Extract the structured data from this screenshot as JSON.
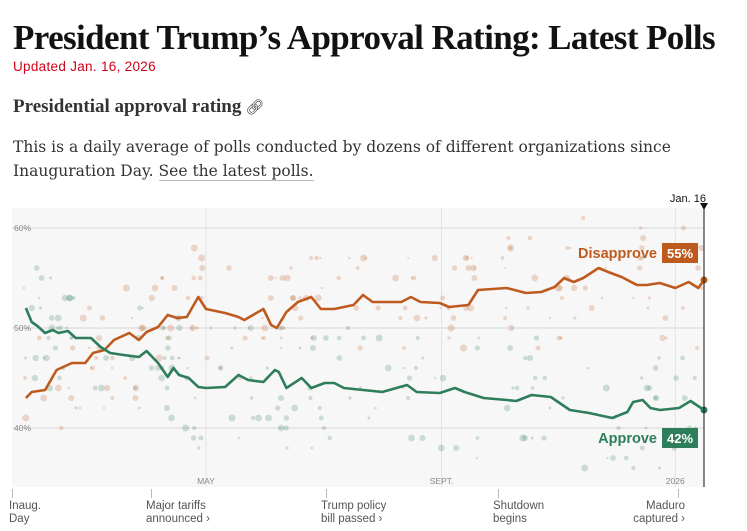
{
  "header": {
    "title": "President Trump’s Approval Rating: Latest Polls",
    "updated": "Updated Jan. 16, 2026",
    "section_title": "Presidential approval rating",
    "section_icon": "link-icon",
    "description": "This is a daily average of polls conducted by dozens of different organizations since Inauguration Day.",
    "description_link": "See the latest polls."
  },
  "chart_data": {
    "type": "line",
    "ylim": [
      34,
      62
    ],
    "xlim": [
      "2025-01-20",
      "2026-01-16"
    ],
    "yticks": [
      {
        "value": 60,
        "label": "60%"
      },
      {
        "value": 50,
        "label": "50%"
      },
      {
        "value": 40,
        "label": "40%"
      }
    ],
    "xticks": [
      {
        "date": "2025-05-01",
        "label": "MAY"
      },
      {
        "date": "2025-09-01",
        "label": "SEPT."
      },
      {
        "date": "2026-01-01",
        "label": "2026"
      }
    ],
    "grid": true,
    "current_marker": {
      "date": "2026-01-16",
      "label": "Jan. 16"
    },
    "series": [
      {
        "name": "Disapprove",
        "color": "#bf5a1f",
        "end_label": "55%",
        "points": [
          [
            "2025-01-27",
            43.0
          ],
          [
            "2025-01-30",
            43.6
          ],
          [
            "2025-02-06",
            43.8
          ],
          [
            "2025-02-12",
            45.8
          ],
          [
            "2025-02-20",
            46.5
          ],
          [
            "2025-02-27",
            46.5
          ],
          [
            "2025-03-03",
            47.5
          ],
          [
            "2025-03-09",
            47.8
          ],
          [
            "2025-03-14",
            48.8
          ],
          [
            "2025-03-22",
            49.5
          ],
          [
            "2025-03-27",
            48.8
          ],
          [
            "2025-03-31",
            49.6
          ],
          [
            "2025-04-06",
            50.1
          ],
          [
            "2025-04-11",
            51.3
          ],
          [
            "2025-04-16",
            51.0
          ],
          [
            "2025-04-21",
            51.1
          ],
          [
            "2025-04-27",
            53.1
          ],
          [
            "2025-05-01",
            51.9
          ],
          [
            "2025-05-11",
            51.5
          ],
          [
            "2025-05-18",
            51.1
          ],
          [
            "2025-05-21",
            50.8
          ],
          [
            "2025-05-31",
            51.9
          ],
          [
            "2025-06-04",
            50.3
          ],
          [
            "2025-06-07",
            50.0
          ],
          [
            "2025-06-12",
            51.6
          ],
          [
            "2025-06-18",
            52.6
          ],
          [
            "2025-06-25",
            53.1
          ],
          [
            "2025-06-30",
            51.9
          ],
          [
            "2025-07-07",
            51.9
          ],
          [
            "2025-07-17",
            52.3
          ],
          [
            "2025-07-22",
            53.3
          ],
          [
            "2025-07-27",
            52.6
          ],
          [
            "2025-08-11",
            52.6
          ],
          [
            "2025-08-16",
            53.1
          ],
          [
            "2025-08-21",
            52.6
          ],
          [
            "2025-08-31",
            52.5
          ],
          [
            "2025-09-05",
            52.1
          ],
          [
            "2025-09-15",
            52.3
          ],
          [
            "2025-09-20",
            53.8
          ],
          [
            "2025-10-05",
            54.0
          ],
          [
            "2025-10-15",
            53.5
          ],
          [
            "2025-10-23",
            53.6
          ],
          [
            "2025-10-30",
            54.1
          ],
          [
            "2025-11-04",
            55.0
          ],
          [
            "2025-11-09",
            54.6
          ],
          [
            "2025-11-14",
            55.0
          ],
          [
            "2025-11-22",
            56.0
          ],
          [
            "2025-11-27",
            55.6
          ],
          [
            "2025-12-04",
            55.1
          ],
          [
            "2025-12-12",
            54.3
          ],
          [
            "2025-12-17",
            54.3
          ],
          [
            "2025-12-24",
            54.5
          ],
          [
            "2026-01-01",
            54.0
          ],
          [
            "2026-01-08",
            54.6
          ],
          [
            "2026-01-13",
            54.0
          ],
          [
            "2026-01-16",
            54.8
          ]
        ]
      },
      {
        "name": "Approve",
        "color": "#2e7d5b",
        "end_label": "42%",
        "points": [
          [
            "2025-01-27",
            52.0
          ],
          [
            "2025-01-30",
            50.6
          ],
          [
            "2025-02-02",
            50.2
          ],
          [
            "2025-02-06",
            49.5
          ],
          [
            "2025-02-10",
            49.8
          ],
          [
            "2025-02-13",
            49.5
          ],
          [
            "2025-02-18",
            49.7
          ],
          [
            "2025-02-22",
            49.0
          ],
          [
            "2025-03-02",
            49.0
          ],
          [
            "2025-03-07",
            48.1
          ],
          [
            "2025-03-12",
            47.5
          ],
          [
            "2025-03-19",
            47.3
          ],
          [
            "2025-03-27",
            47.1
          ],
          [
            "2025-03-31",
            47.7
          ],
          [
            "2025-04-06",
            46.5
          ],
          [
            "2025-04-11",
            45.1
          ],
          [
            "2025-04-14",
            46.0
          ],
          [
            "2025-04-17",
            45.3
          ],
          [
            "2025-04-22",
            45.0
          ],
          [
            "2025-04-27",
            44.1
          ],
          [
            "2025-05-01",
            44.0
          ],
          [
            "2025-05-11",
            44.1
          ],
          [
            "2025-05-18",
            45.3
          ],
          [
            "2025-05-23",
            44.8
          ],
          [
            "2025-05-31",
            44.6
          ],
          [
            "2025-06-06",
            45.8
          ],
          [
            "2025-06-08",
            45.6
          ],
          [
            "2025-06-12",
            44.0
          ],
          [
            "2025-06-20",
            45.0
          ],
          [
            "2025-06-25",
            44.0
          ],
          [
            "2025-07-02",
            44.5
          ],
          [
            "2025-07-07",
            44.5
          ],
          [
            "2025-07-12",
            44.0
          ],
          [
            "2025-07-22",
            43.8
          ],
          [
            "2025-08-01",
            43.6
          ],
          [
            "2025-08-14",
            44.3
          ],
          [
            "2025-08-19",
            43.6
          ],
          [
            "2025-08-31",
            43.5
          ],
          [
            "2025-09-08",
            44.0
          ],
          [
            "2025-09-13",
            43.6
          ],
          [
            "2025-09-23",
            43.0
          ],
          [
            "2025-10-05",
            42.8
          ],
          [
            "2025-10-10",
            42.7
          ],
          [
            "2025-10-18",
            43.3
          ],
          [
            "2025-10-28",
            43.1
          ],
          [
            "2025-11-07",
            41.8
          ],
          [
            "2025-11-17",
            41.5
          ],
          [
            "2025-11-29",
            41.0
          ],
          [
            "2025-12-07",
            41.6
          ],
          [
            "2025-12-10",
            42.6
          ],
          [
            "2025-12-15",
            42.8
          ],
          [
            "2025-12-19",
            42.0
          ],
          [
            "2025-12-24",
            41.8
          ],
          [
            "2026-01-03",
            42.0
          ],
          [
            "2026-01-09",
            42.7
          ],
          [
            "2026-01-16",
            41.8
          ]
        ]
      }
    ],
    "events": [
      {
        "label_1": "Inaug.",
        "label_2": "Day"
      },
      {
        "label_1": "Major tariffs",
        "label_2": "announced ›"
      },
      {
        "label_1": "Trump policy",
        "label_2": "bill passed ›"
      },
      {
        "label_1": "Shutdown",
        "label_2": "begins"
      },
      {
        "label_1": "Maduro",
        "label_2": "captured ›"
      }
    ]
  }
}
